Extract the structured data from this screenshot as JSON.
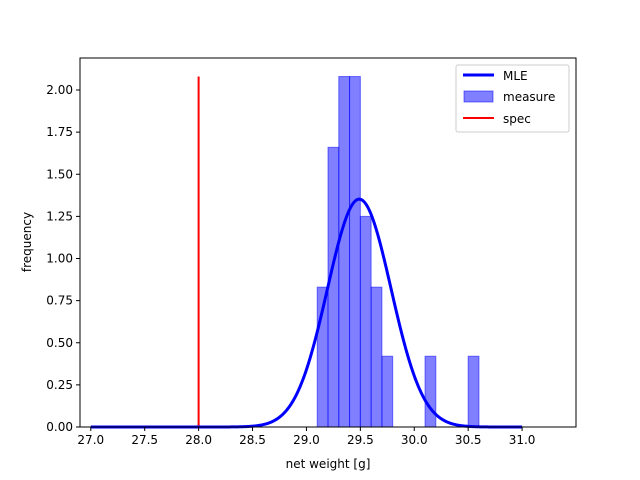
{
  "chart_data": {
    "type": "bar",
    "title": "",
    "xlabel": "net weight [g]",
    "ylabel": "frequency",
    "xlim": [
      26.9,
      31.5
    ],
    "ylim": [
      0.0,
      2.19
    ],
    "xticks": [
      27.0,
      27.5,
      28.0,
      28.5,
      29.0,
      29.5,
      30.0,
      30.5,
      31.0
    ],
    "xtick_labels": [
      "27.0",
      "27.5",
      "28.0",
      "28.5",
      "29.0",
      "29.5",
      "30.0",
      "30.5",
      "31.0"
    ],
    "yticks": [
      0.0,
      0.25,
      0.5,
      0.75,
      1.0,
      1.25,
      1.5,
      1.75,
      2.0
    ],
    "ytick_labels": [
      "0.00",
      "0.25",
      "0.50",
      "0.75",
      "1.00",
      "1.25",
      "1.50",
      "1.75",
      "2.00"
    ],
    "grid": false,
    "legend_position": "top-right",
    "series": [
      {
        "name": "MLE",
        "kind": "line",
        "color": "#0000ff",
        "mean": 29.49,
        "std": 0.295,
        "x_range": [
          27.0,
          31.0
        ]
      },
      {
        "name": "measure",
        "kind": "histogram",
        "color": "#0000ff",
        "bin_width": 0.1,
        "bins": [
          {
            "x0": 29.1,
            "x1": 29.2,
            "value": 0.83
          },
          {
            "x0": 29.2,
            "x1": 29.3,
            "value": 1.66
          },
          {
            "x0": 29.3,
            "x1": 29.4,
            "value": 2.08
          },
          {
            "x0": 29.4,
            "x1": 29.5,
            "value": 2.08
          },
          {
            "x0": 29.5,
            "x1": 29.6,
            "value": 1.25
          },
          {
            "x0": 29.6,
            "x1": 29.7,
            "value": 0.83
          },
          {
            "x0": 29.7,
            "x1": 29.8,
            "value": 0.42
          },
          {
            "x0": 30.1,
            "x1": 30.2,
            "value": 0.42
          },
          {
            "x0": 30.5,
            "x1": 30.6,
            "value": 0.42
          }
        ]
      },
      {
        "name": "spec",
        "kind": "vline",
        "color": "#ff0000",
        "x": 28.0,
        "y_range": [
          0.0,
          2.08
        ]
      }
    ]
  }
}
